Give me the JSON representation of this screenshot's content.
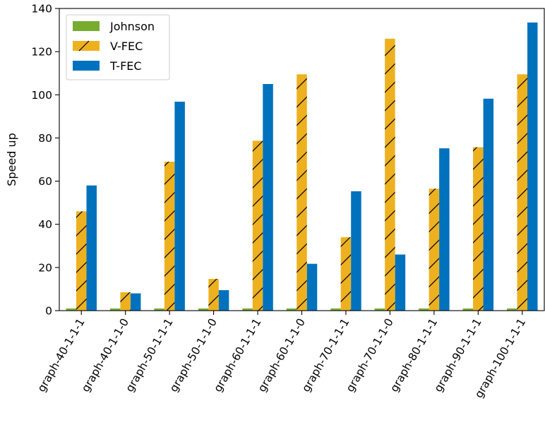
{
  "chart_data": {
    "type": "bar",
    "title": "",
    "xlabel": "",
    "ylabel": "Speed up",
    "ylim": [
      0,
      140
    ],
    "yticks": [
      0,
      20,
      40,
      60,
      80,
      100,
      120,
      140
    ],
    "grid": false,
    "legend_position": "top-left",
    "categories": [
      "graph-40-1-1-1",
      "graph-40-1-1-0",
      "graph-50-1-1-1",
      "graph-50-1-1-0",
      "graph-60-1-1-1",
      "graph-60-1-1-0",
      "graph-70-1-1-1",
      "graph-70-1-1-0",
      "graph-80-1-1-1",
      "graph-90-1-1-1",
      "graph-100-1-1-1"
    ],
    "series": [
      {
        "name": "Johnson",
        "color": "#77ac30",
        "hatch": "none",
        "values": [
          1,
          1,
          1,
          1,
          1,
          1,
          1,
          1,
          1,
          1,
          1
        ]
      },
      {
        "name": "V-FEC",
        "color": "#edb120",
        "hatch": "diagonal",
        "values": [
          46,
          8.5,
          69,
          14.7,
          78.7,
          109.5,
          34,
          126,
          56.5,
          75.7,
          109.5
        ]
      },
      {
        "name": "T-FEC",
        "color": "#0072bd",
        "hatch": "none",
        "values": [
          58,
          8,
          96.8,
          9.5,
          105,
          21.7,
          55.3,
          26,
          75.2,
          98.2,
          133.5
        ]
      }
    ]
  }
}
